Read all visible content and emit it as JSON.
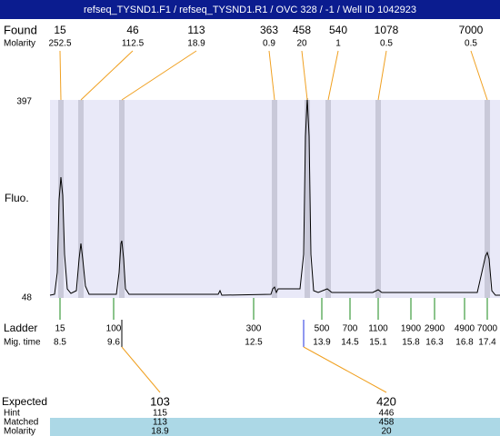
{
  "header": {
    "title": "refseq_TYSND1.F1 / refseq_TYSND1.R1 / OVC 328 / -1 / Well ID 1042923"
  },
  "found": {
    "label": "Found",
    "molarity_label": "Molarity",
    "sizes": [
      15,
      46,
      113,
      363,
      458,
      540,
      1078,
      7000
    ],
    "molarity": [
      252.5,
      112.5,
      18.9,
      0.9,
      20,
      1,
      0.5,
      0.5
    ]
  },
  "y_axis": {
    "label": "Fluo.",
    "max": 397,
    "min": 48
  },
  "ladder": {
    "label": "Ladder",
    "time_label": "Mig. time",
    "sizes": [
      15,
      100,
      300,
      500,
      700,
      1100,
      1900,
      2900,
      4900,
      7000
    ],
    "times": [
      8.5,
      9.6,
      12.5,
      13.9,
      14.5,
      15.1,
      15.8,
      16.3,
      16.8,
      17.4
    ]
  },
  "expected": {
    "labels": [
      "Expected",
      "Hint",
      "Matched",
      "Molarity"
    ],
    "columns": [
      {
        "expected": 103,
        "hint": 115,
        "matched": 113,
        "molarity": 18.9
      },
      {
        "expected": 420,
        "hint": 446,
        "matched": 458,
        "molarity": 20
      }
    ]
  }
}
